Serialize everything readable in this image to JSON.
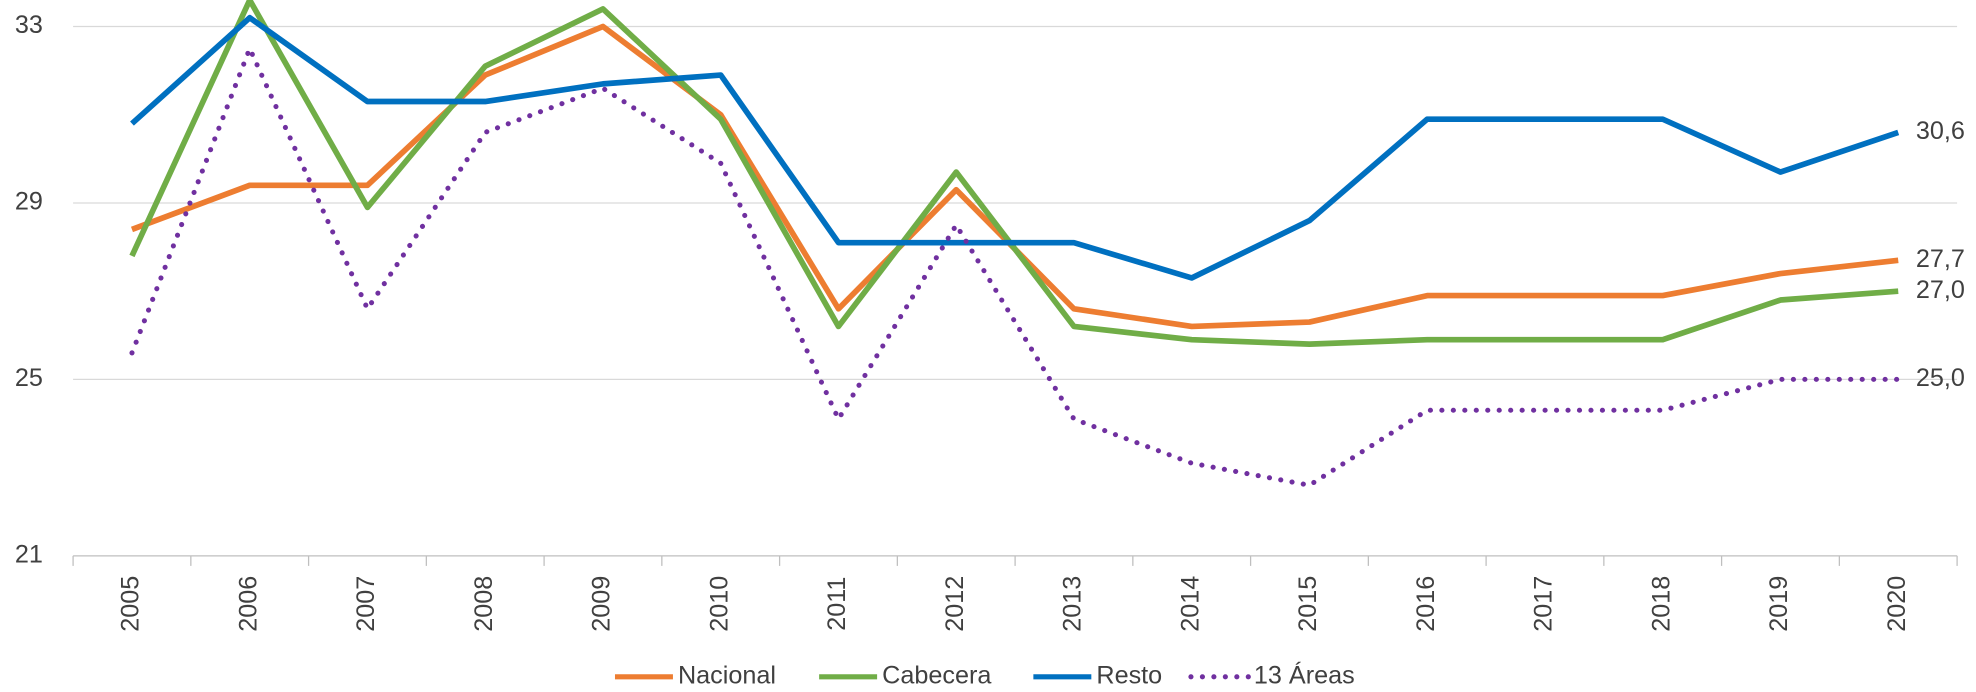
{
  "chart_data": {
    "type": "line",
    "categories": [
      "2005",
      "2006",
      "2007",
      "2008",
      "2009",
      "2010",
      "2011",
      "2012",
      "2013",
      "2014",
      "2015",
      "2016",
      "2017",
      "2018",
      "2019",
      "2020"
    ],
    "series": [
      {
        "name": "Nacional",
        "color": "#ed7d31",
        "dotted": false,
        "values": [
          28.4,
          29.4,
          29.4,
          31.9,
          33.0,
          31.0,
          26.6,
          29.3,
          26.6,
          26.2,
          26.3,
          26.9,
          26.9,
          26.9,
          27.4,
          27.7
        ],
        "value_labels": [
          null,
          null,
          null,
          null,
          null,
          null,
          null,
          null,
          null,
          null,
          null,
          null,
          null,
          null,
          null,
          "27,7"
        ]
      },
      {
        "name": "Cabecera",
        "color": "#70ad47",
        "dotted": false,
        "values": [
          27.8,
          33.6,
          28.9,
          32.1,
          33.4,
          30.9,
          26.2,
          29.7,
          26.2,
          25.9,
          25.8,
          25.9,
          25.9,
          25.9,
          26.8,
          27.0
        ],
        "value_labels": [
          null,
          null,
          null,
          null,
          null,
          null,
          null,
          null,
          null,
          null,
          null,
          null,
          null,
          null,
          null,
          "27,0"
        ]
      },
      {
        "name": "Resto",
        "color": "#0070c0",
        "dotted": false,
        "values": [
          30.8,
          33.2,
          31.3,
          31.3,
          31.7,
          31.9,
          28.1,
          28.1,
          28.1,
          27.3,
          28.6,
          30.9,
          30.9,
          30.9,
          29.7,
          30.6
        ],
        "value_labels": [
          null,
          null,
          null,
          null,
          null,
          null,
          null,
          null,
          null,
          null,
          null,
          null,
          null,
          null,
          null,
          "30,6"
        ]
      },
      {
        "name": "13 Áreas",
        "color": "#7030a0",
        "dotted": true,
        "values": [
          25.6,
          32.5,
          26.6,
          30.6,
          31.6,
          29.9,
          24.1,
          28.5,
          24.1,
          23.1,
          22.6,
          24.3,
          24.3,
          24.3,
          25.0,
          25.0
        ],
        "value_labels": [
          null,
          null,
          null,
          null,
          null,
          null,
          null,
          null,
          null,
          null,
          null,
          null,
          null,
          null,
          null,
          "25,0"
        ]
      }
    ],
    "ylim": [
      21,
      33
    ],
    "yticks": [
      21,
      25,
      29,
      33
    ],
    "grid": true,
    "legend": "bottom"
  }
}
